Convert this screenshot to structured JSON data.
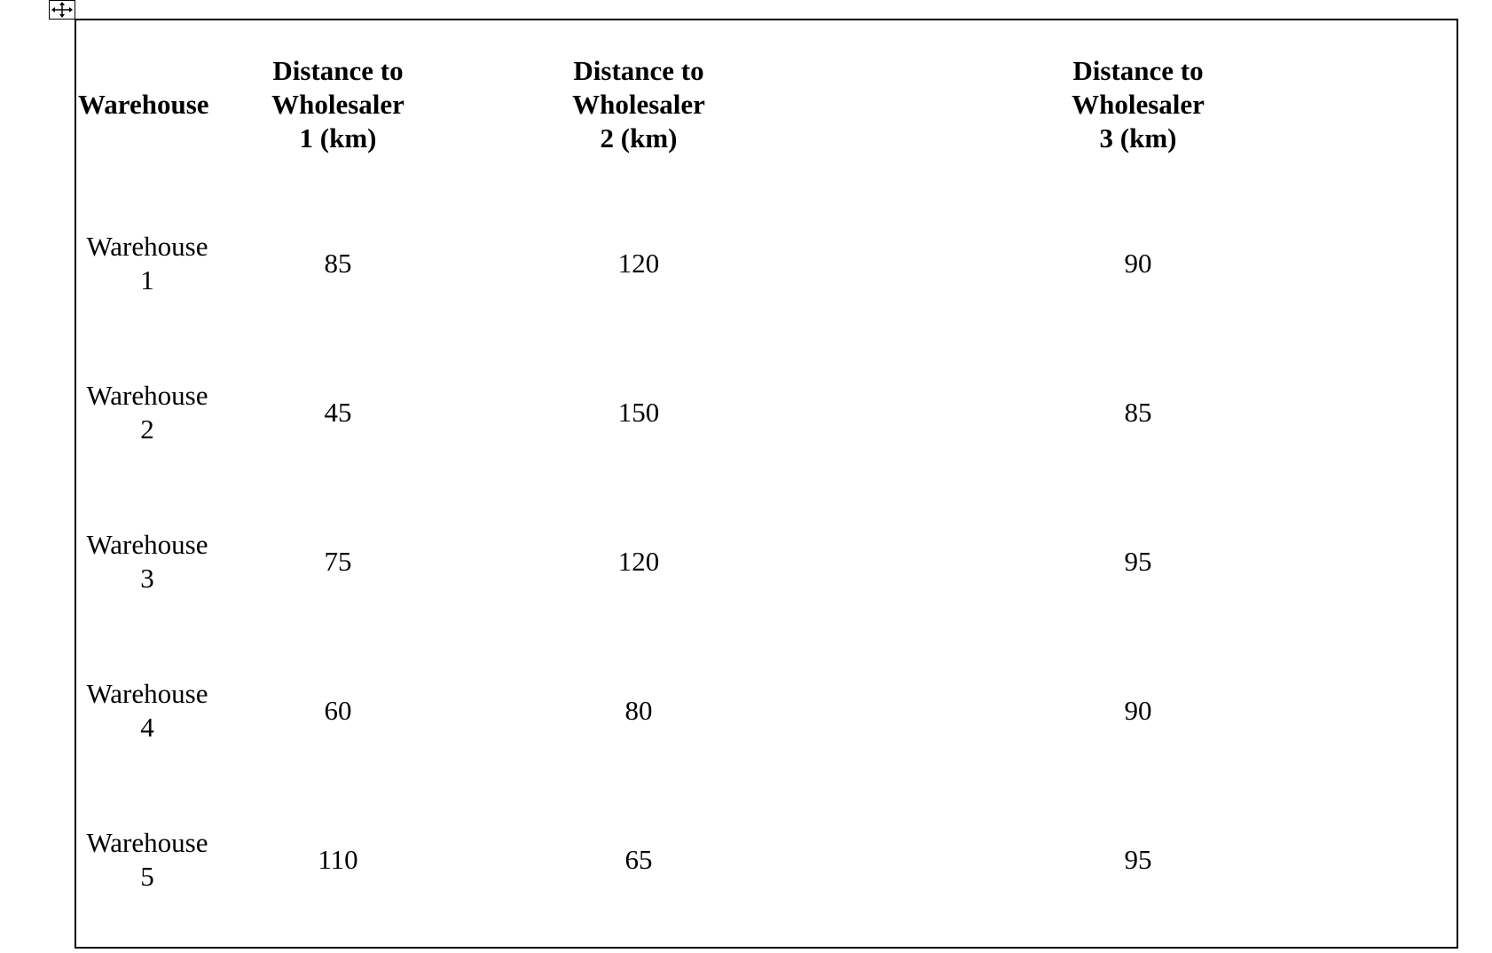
{
  "table": {
    "headers": [
      "Warehouse",
      "Distance to\nWholesaler\n1 (km)",
      "Distance to\nWholesaler\n2 (km)",
      "Distance to\nWholesaler\n3 (km)"
    ],
    "rows": [
      {
        "warehouse": "Warehouse\n1",
        "d1": "85",
        "d2": "120",
        "d3": "90"
      },
      {
        "warehouse": "Warehouse\n2",
        "d1": "45",
        "d2": "150",
        "d3": "85"
      },
      {
        "warehouse": "Warehouse\n3",
        "d1": "75",
        "d2": "120",
        "d3": "95"
      },
      {
        "warehouse": "Warehouse\n4",
        "d1": "60",
        "d2": "80",
        "d3": "90"
      },
      {
        "warehouse": "Warehouse\n5",
        "d1": "110",
        "d2": "65",
        "d3": "95"
      }
    ]
  },
  "icons": {
    "move_handle": "move-arrows-icon"
  }
}
